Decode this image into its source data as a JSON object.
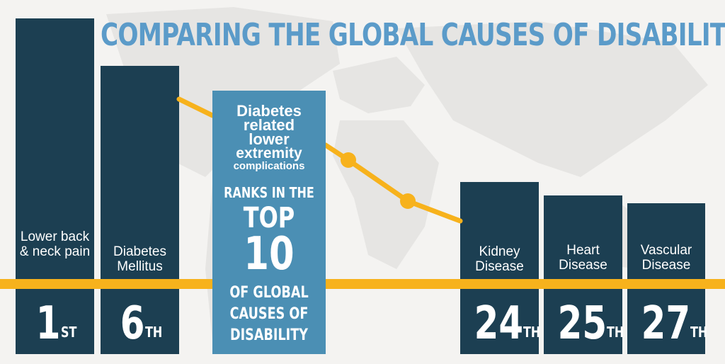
{
  "title": "COMPARING THE GLOBAL CAUSES OF DISABILITY",
  "colors": {
    "background": "#f4f3f1",
    "bar": "#1c3f52",
    "highlight_box": "#4b8fb4",
    "title": "#5b9bc9",
    "accent_line": "#f7b21c"
  },
  "bars": [
    {
      "label": "Lower back & neck pain",
      "rank": "1",
      "suffix": "ST"
    },
    {
      "label": "Diabetes Mellitus",
      "rank": "6",
      "suffix": "TH"
    },
    {
      "label": "Kidney Disease",
      "rank": "24",
      "suffix": "TH"
    },
    {
      "label": "Heart Disease",
      "rank": "25",
      "suffix": "TH"
    },
    {
      "label": "Vascular Disease",
      "rank": "27",
      "suffix": "TH"
    }
  ],
  "highlight": {
    "line1": "Diabetes",
    "line2": "related",
    "line3": "lower",
    "line4": "extremity",
    "line5": "complications",
    "ranks_in_the": "RANKS IN THE",
    "top": "TOP",
    "top_number": "10",
    "of_global": "OF GLOBAL",
    "causes_of": "CAUSES OF",
    "disability": "DISABILITY"
  }
}
